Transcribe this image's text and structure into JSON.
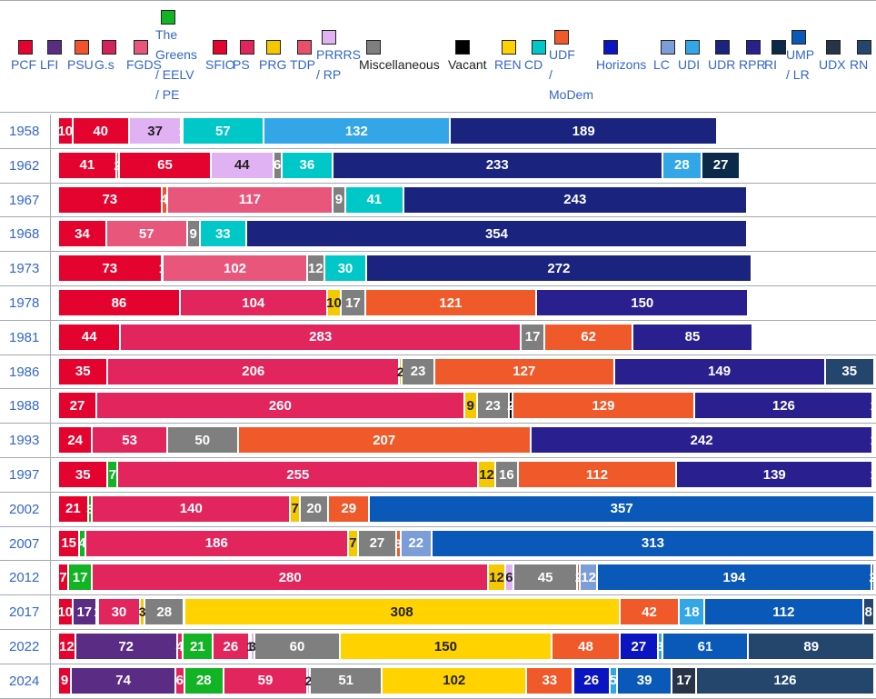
{
  "parties": [
    {
      "key": "PCF",
      "label": "PCF",
      "color": "#e4032e"
    },
    {
      "key": "LFI",
      "label": "LFI",
      "color": "#5b2c83"
    },
    {
      "key": "PSU",
      "label": "PSU",
      "color": "#f0532d"
    },
    {
      "key": "Gs",
      "label": "G.s",
      "color": "#d4235a"
    },
    {
      "key": "FGDS",
      "label": "FGDS",
      "color": "#e8567c"
    },
    {
      "key": "EELV",
      "label": "The\nGreens\n/ EELV\n/ PE",
      "color": "#12b425"
    },
    {
      "key": "SFIO",
      "label": "SFIO",
      "color": "#e4032e"
    },
    {
      "key": "PS",
      "label": "PS",
      "color": "#e3255d"
    },
    {
      "key": "PRG",
      "label": "PRG",
      "color": "#f5c800"
    },
    {
      "key": "TDP",
      "label": "TDP",
      "color": "#e8506a"
    },
    {
      "key": "PRRRS",
      "label": "PRRRS\n/ RP",
      "color": "#e0b2f4"
    },
    {
      "key": "MISC",
      "label": "Miscellaneous",
      "color": "#7f7f7f",
      "black": true
    },
    {
      "key": "VAC",
      "label": "Vacant",
      "color": "#000000",
      "black": true
    },
    {
      "key": "REN",
      "label": "REN",
      "color": "#ffd200"
    },
    {
      "key": "CD",
      "label": "CD",
      "color": "#00c8c8"
    },
    {
      "key": "UDF",
      "label": "UDF\n/\nMoDem",
      "color": "#f0592a"
    },
    {
      "key": "HOR",
      "label": "Horizons",
      "color": "#0a14c0"
    },
    {
      "key": "LC",
      "label": "LC",
      "color": "#7b9ed8"
    },
    {
      "key": "UDI",
      "label": "UDI",
      "color": "#33a6e8"
    },
    {
      "key": "UDR",
      "label": "UDR",
      "color": "#1a237e"
    },
    {
      "key": "RPR",
      "label": "RPR",
      "color": "#2a1f8f"
    },
    {
      "key": "RI",
      "label": "RI",
      "color": "#0b2a4a"
    },
    {
      "key": "UMP",
      "label": "UMP\n/ LR",
      "color": "#0a58b8"
    },
    {
      "key": "UDX",
      "label": "UDX",
      "color": "#273447"
    },
    {
      "key": "RN",
      "label": "RN",
      "color": "#24466d"
    }
  ],
  "chart_data": {
    "type": "bar",
    "orientation": "horizontal-stacked",
    "title": "",
    "categories": [
      "1958",
      "1962",
      "1967",
      "1968",
      "1973",
      "1978",
      "1981",
      "1986",
      "1988",
      "1993",
      "1997",
      "2002",
      "2007",
      "2012",
      "2017",
      "2022",
      "2024"
    ],
    "rows": [
      {
        "year": "1958",
        "segments": [
          [
            "PCF",
            10
          ],
          [
            "SFIO",
            40
          ],
          [
            "PRRRS",
            37
          ],
          [
            "MISC",
            1
          ],
          [
            "CD",
            57
          ],
          [
            "UDI",
            132
          ],
          [
            "UDR",
            189
          ]
        ]
      },
      {
        "year": "1962",
        "segments": [
          [
            "PCF",
            41
          ],
          [
            "PSU",
            2
          ],
          [
            "SFIO",
            65
          ],
          [
            "PRRRS",
            44
          ],
          [
            "MISC",
            6
          ],
          [
            "CD",
            36
          ],
          [
            "UDR",
            233
          ],
          [
            "UDI",
            28
          ],
          [
            "RI",
            27
          ]
        ]
      },
      {
        "year": "1967",
        "segments": [
          [
            "PCF",
            73
          ],
          [
            "PSU",
            4
          ],
          [
            "FGDS",
            117
          ],
          [
            "MISC",
            9
          ],
          [
            "CD",
            41
          ],
          [
            "UDR",
            243
          ]
        ]
      },
      {
        "year": "1968",
        "segments": [
          [
            "PCF",
            34
          ],
          [
            "FGDS",
            57
          ],
          [
            "MISC",
            9
          ],
          [
            "CD",
            33
          ],
          [
            "UDR",
            354
          ]
        ]
      },
      {
        "year": "1973",
        "segments": [
          [
            "PCF",
            73
          ],
          [
            "PSU",
            1
          ],
          [
            "FGDS",
            102
          ],
          [
            "MISC",
            12
          ],
          [
            "CD",
            30
          ],
          [
            "UDR",
            272
          ]
        ]
      },
      {
        "year": "1978",
        "segments": [
          [
            "PCF",
            86
          ],
          [
            "PS",
            104
          ],
          [
            "PRG",
            10
          ],
          [
            "MISC",
            17
          ],
          [
            "UDF",
            121
          ],
          [
            "RPR",
            150
          ]
        ]
      },
      {
        "year": "1981",
        "segments": [
          [
            "PCF",
            44
          ],
          [
            "PS",
            283
          ],
          [
            "MISC",
            17
          ],
          [
            "UDF",
            62
          ],
          [
            "RPR",
            85
          ]
        ]
      },
      {
        "year": "1986",
        "segments": [
          [
            "PCF",
            35
          ],
          [
            "PS",
            206
          ],
          [
            "PRG",
            2
          ],
          [
            "MISC",
            23
          ],
          [
            "UDF",
            127
          ],
          [
            "RPR",
            149
          ],
          [
            "RN",
            35
          ]
        ]
      },
      {
        "year": "1988",
        "segments": [
          [
            "PCF",
            27
          ],
          [
            "PS",
            260
          ],
          [
            "PRG",
            9
          ],
          [
            "MISC",
            23
          ],
          [
            "VAC",
            2
          ],
          [
            "UDF",
            129
          ],
          [
            "RPR",
            126
          ],
          [
            "RN",
            1
          ]
        ]
      },
      {
        "year": "1993",
        "segments": [
          [
            "PCF",
            24
          ],
          [
            "PS",
            53
          ],
          [
            "MISC",
            50
          ],
          [
            "UDF",
            207
          ],
          [
            "RPR",
            242
          ],
          [
            "RN",
            1
          ]
        ]
      },
      {
        "year": "1997",
        "segments": [
          [
            "PCF",
            35
          ],
          [
            "EELV",
            7
          ],
          [
            "PS",
            255
          ],
          [
            "PRG",
            12
          ],
          [
            "MISC",
            16
          ],
          [
            "UDF",
            112
          ],
          [
            "RPR",
            139
          ],
          [
            "RN",
            1
          ]
        ]
      },
      {
        "year": "2002",
        "segments": [
          [
            "PCF",
            21
          ],
          [
            "EELV",
            3
          ],
          [
            "PS",
            140
          ],
          [
            "PRG",
            7
          ],
          [
            "MISC",
            20
          ],
          [
            "UDF",
            29
          ],
          [
            "UMP",
            357
          ]
        ]
      },
      {
        "year": "2007",
        "segments": [
          [
            "PCF",
            15
          ],
          [
            "EELV",
            4
          ],
          [
            "PS",
            186
          ],
          [
            "PRG",
            7
          ],
          [
            "MISC",
            27
          ],
          [
            "UDF",
            3
          ],
          [
            "LC",
            22
          ],
          [
            "UMP",
            313
          ]
        ]
      },
      {
        "year": "2012",
        "segments": [
          [
            "PCF",
            7
          ],
          [
            "EELV",
            17
          ],
          [
            "PS",
            280
          ],
          [
            "PRG",
            12
          ],
          [
            "PRRRS",
            6
          ],
          [
            "MISC",
            45
          ],
          [
            "UDF",
            2
          ],
          [
            "LC",
            12
          ],
          [
            "UMP",
            194
          ],
          [
            "RN",
            2
          ]
        ]
      },
      {
        "year": "2017",
        "segments": [
          [
            "PCF",
            10
          ],
          [
            "LFI",
            17
          ],
          [
            "EELV",
            1
          ],
          [
            "PS",
            30
          ],
          [
            "PRG",
            3
          ],
          [
            "MISC",
            28
          ],
          [
            "REN",
            308
          ],
          [
            "UDF",
            42
          ],
          [
            "UDI",
            18
          ],
          [
            "UMP",
            112
          ],
          [
            "RN",
            8
          ]
        ]
      },
      {
        "year": "2022",
        "segments": [
          [
            "PCF",
            12
          ],
          [
            "LFI",
            72
          ],
          [
            "PS",
            4
          ],
          [
            "EELV",
            21
          ],
          [
            "PS",
            26
          ],
          [
            "PRG",
            1
          ],
          [
            "PRRRS",
            3
          ],
          [
            "MISC",
            60
          ],
          [
            "REN",
            150
          ],
          [
            "UDF",
            48
          ],
          [
            "HOR",
            27
          ],
          [
            "UDI",
            3
          ],
          [
            "UMP",
            61
          ],
          [
            "RN",
            89
          ]
        ]
      },
      {
        "year": "2024",
        "segments": [
          [
            "PCF",
            9
          ],
          [
            "LFI",
            74
          ],
          [
            "PS",
            6
          ],
          [
            "EELV",
            28
          ],
          [
            "PS",
            59
          ],
          [
            "PRRRS",
            2
          ],
          [
            "MISC",
            51
          ],
          [
            "REN",
            102
          ],
          [
            "UDF",
            33
          ],
          [
            "HOR",
            26
          ],
          [
            "UDI",
            5
          ],
          [
            "UMP",
            39
          ],
          [
            "UDX",
            17
          ],
          [
            "RN",
            126
          ]
        ]
      }
    ]
  }
}
